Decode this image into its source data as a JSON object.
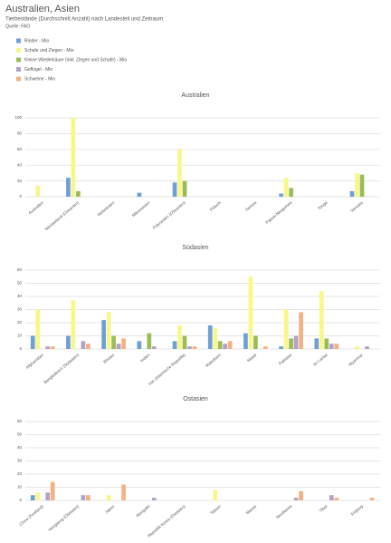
{
  "header": {
    "title": "Australien, Asien",
    "subtitle": "Tierbestände (Durchschnitt Anzahl) nach Landesteil und Zeitraum",
    "source": "Quelle: FAO"
  },
  "chart_data": [
    {
      "type": "bar",
      "title": "Australien",
      "ylim": [
        0,
        100
      ],
      "yticks": [
        0,
        20,
        40,
        60,
        80,
        100
      ],
      "grid": true,
      "categories": [
        "Australien",
        "Neuseeland (Ozeanien)",
        "Melanesien",
        "Mikronesien",
        "Polynesien (Ozeanien)",
        "Fidschi",
        "Samoa",
        "Papua-Neuguinea",
        "Tonga",
        "Vanuatu"
      ],
      "series": [
        {
          "name": "Rinder - Mio",
          "color": "#6f9fd8",
          "values": [
            null,
            24,
            null,
            5,
            18,
            null,
            null,
            4,
            null,
            7
          ]
        },
        {
          "name": "Schafe und Ziegen - Mio",
          "color": "#f7f78a",
          "values": [
            14,
            100,
            null,
            null,
            60,
            null,
            null,
            24,
            null,
            30
          ]
        },
        {
          "name": "Kleine Wiederkäuer (inkl. Ziegen und Schafe) - Mio",
          "color": "#9bbb59",
          "values": [
            null,
            7,
            null,
            null,
            20,
            null,
            null,
            11,
            null,
            28
          ]
        },
        {
          "name": "Geflügel - Mio",
          "color": "#b3a2c7",
          "values": [
            null,
            null,
            null,
            null,
            null,
            null,
            null,
            null,
            null,
            null
          ]
        },
        {
          "name": "Schweine - Mio",
          "color": "#f4b183",
          "values": [
            null,
            null,
            null,
            null,
            null,
            null,
            null,
            null,
            null,
            null
          ]
        }
      ]
    },
    {
      "type": "bar",
      "title": "Südasien",
      "ylim": [
        0,
        60
      ],
      "yticks": [
        0,
        10,
        20,
        30,
        40,
        50,
        60
      ],
      "grid": true,
      "categories": [
        "Afghanistan",
        "Bangladesch (Südasien)",
        "Bhutan",
        "Indien",
        "Iran (Islamische Republik)",
        "Malediven",
        "Nepal",
        "Pakistan",
        "Sri Lanka",
        "Myanmar"
      ],
      "series": [
        {
          "name": "Rinder - Mio",
          "color": "#6f9fd8",
          "values": [
            10,
            10,
            22,
            6,
            6,
            18,
            12,
            2,
            8,
            null
          ]
        },
        {
          "name": "Schafe und Ziegen - Mio",
          "color": "#f7f78a",
          "values": [
            30,
            37,
            28,
            null,
            18,
            16,
            55,
            30,
            44,
            2
          ]
        },
        {
          "name": "Kleine Wiederkäuer (inkl. Ziegen und Schafe) - Mio",
          "color": "#9bbb59",
          "values": [
            null,
            null,
            10,
            12,
            10,
            6,
            10,
            8,
            8,
            null
          ]
        },
        {
          "name": "Geflügel - Mio",
          "color": "#b3a2c7",
          "values": [
            2,
            6,
            4,
            2,
            2,
            4,
            null,
            10,
            4,
            2
          ]
        },
        {
          "name": "Schweine - Mio",
          "color": "#f4b183",
          "values": [
            2,
            4,
            8,
            null,
            2,
            6,
            2,
            28,
            4,
            null
          ]
        }
      ]
    },
    {
      "type": "bar",
      "title": "Ostasien",
      "ylim": [
        0,
        60
      ],
      "yticks": [
        0,
        10,
        20,
        30,
        40,
        50,
        60
      ],
      "grid": true,
      "categories": [
        "China (Festland)",
        "Hongkong (Ostasien)",
        "Japan",
        "Mongolei",
        "Republik Korea (Ostasien)",
        "Taiwan",
        "Macau",
        "Nordkorea",
        "Tibet",
        "Xinjiang"
      ],
      "series": [
        {
          "name": "Rinder - Mio",
          "color": "#6f9fd8",
          "values": [
            4,
            null,
            null,
            null,
            null,
            null,
            null,
            null,
            null,
            null
          ]
        },
        {
          "name": "Schafe und Ziegen - Mio",
          "color": "#f7f78a",
          "values": [
            6,
            null,
            4,
            null,
            null,
            8,
            null,
            null,
            null,
            null
          ]
        },
        {
          "name": "Kleine Wiederkäuer (inkl. Ziegen und Schafe) - Mio",
          "color": "#9bbb59",
          "values": [
            null,
            null,
            null,
            null,
            null,
            null,
            null,
            null,
            null,
            null
          ]
        },
        {
          "name": "Geflügel - Mio",
          "color": "#b3a2c7",
          "values": [
            6,
            4,
            null,
            2,
            null,
            null,
            null,
            2,
            4,
            null
          ]
        },
        {
          "name": "Schweine - Mio",
          "color": "#f4b183",
          "values": [
            14,
            4,
            12,
            null,
            null,
            null,
            null,
            7,
            2,
            2
          ]
        }
      ]
    }
  ]
}
